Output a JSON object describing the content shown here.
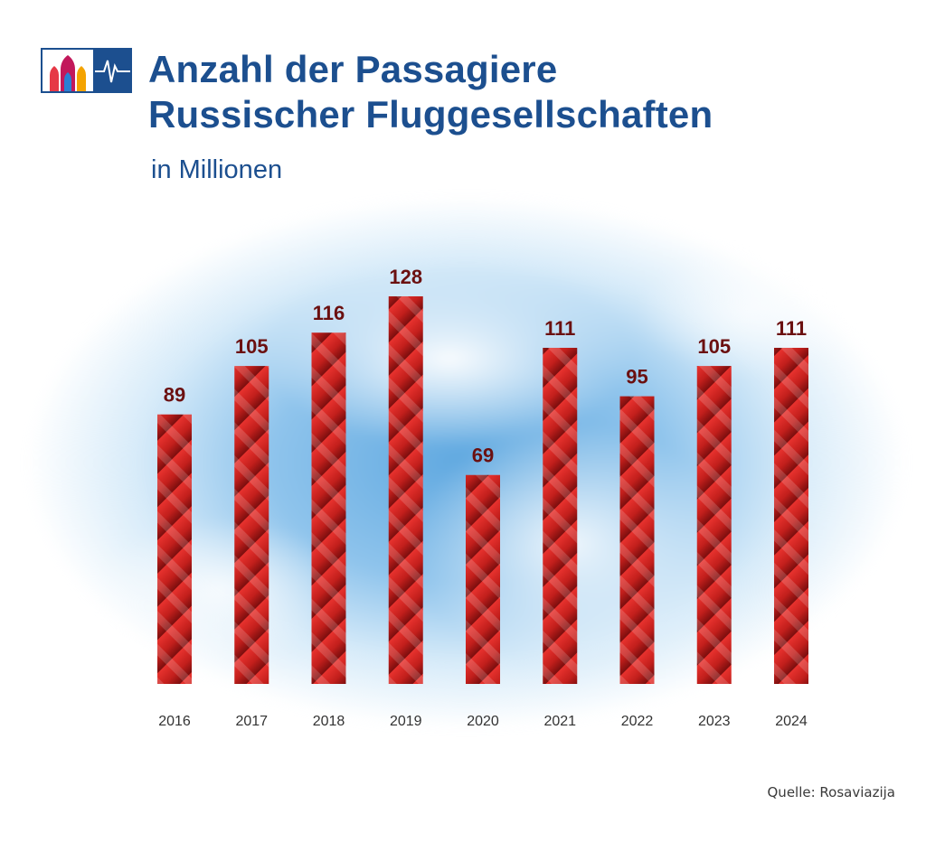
{
  "header": {
    "title_line1": "Anzahl der Passagiere",
    "title_line2": "Russischer Fluggesellschaften",
    "subtitle": "in Millionen"
  },
  "logo": {
    "icon": "onion-dome-logo-icon"
  },
  "source": "Quelle: Rosaviazija",
  "colors": {
    "title": "#1c4f8f",
    "bar_top": "#e8322e",
    "bar_bottom": "#7a0e0e",
    "value_label": "#6b1010",
    "sky": "#5fa8e0"
  },
  "chart_data": {
    "type": "bar",
    "title": "Anzahl der Passagiere Russischer Fluggesellschaften",
    "subtitle": "in Millionen",
    "xlabel": "",
    "ylabel": "",
    "categories": [
      "2016",
      "2017",
      "2018",
      "2019",
      "2020",
      "2021",
      "2022",
      "2023",
      "2024"
    ],
    "values": [
      89,
      105,
      116,
      128,
      69,
      111,
      95,
      105,
      111
    ],
    "value_labels": [
      "89",
      "105",
      "116",
      "128",
      "69",
      "111",
      "95",
      "105",
      "111"
    ],
    "ylim": [
      0,
      128
    ],
    "grid": false,
    "legend": "none"
  }
}
